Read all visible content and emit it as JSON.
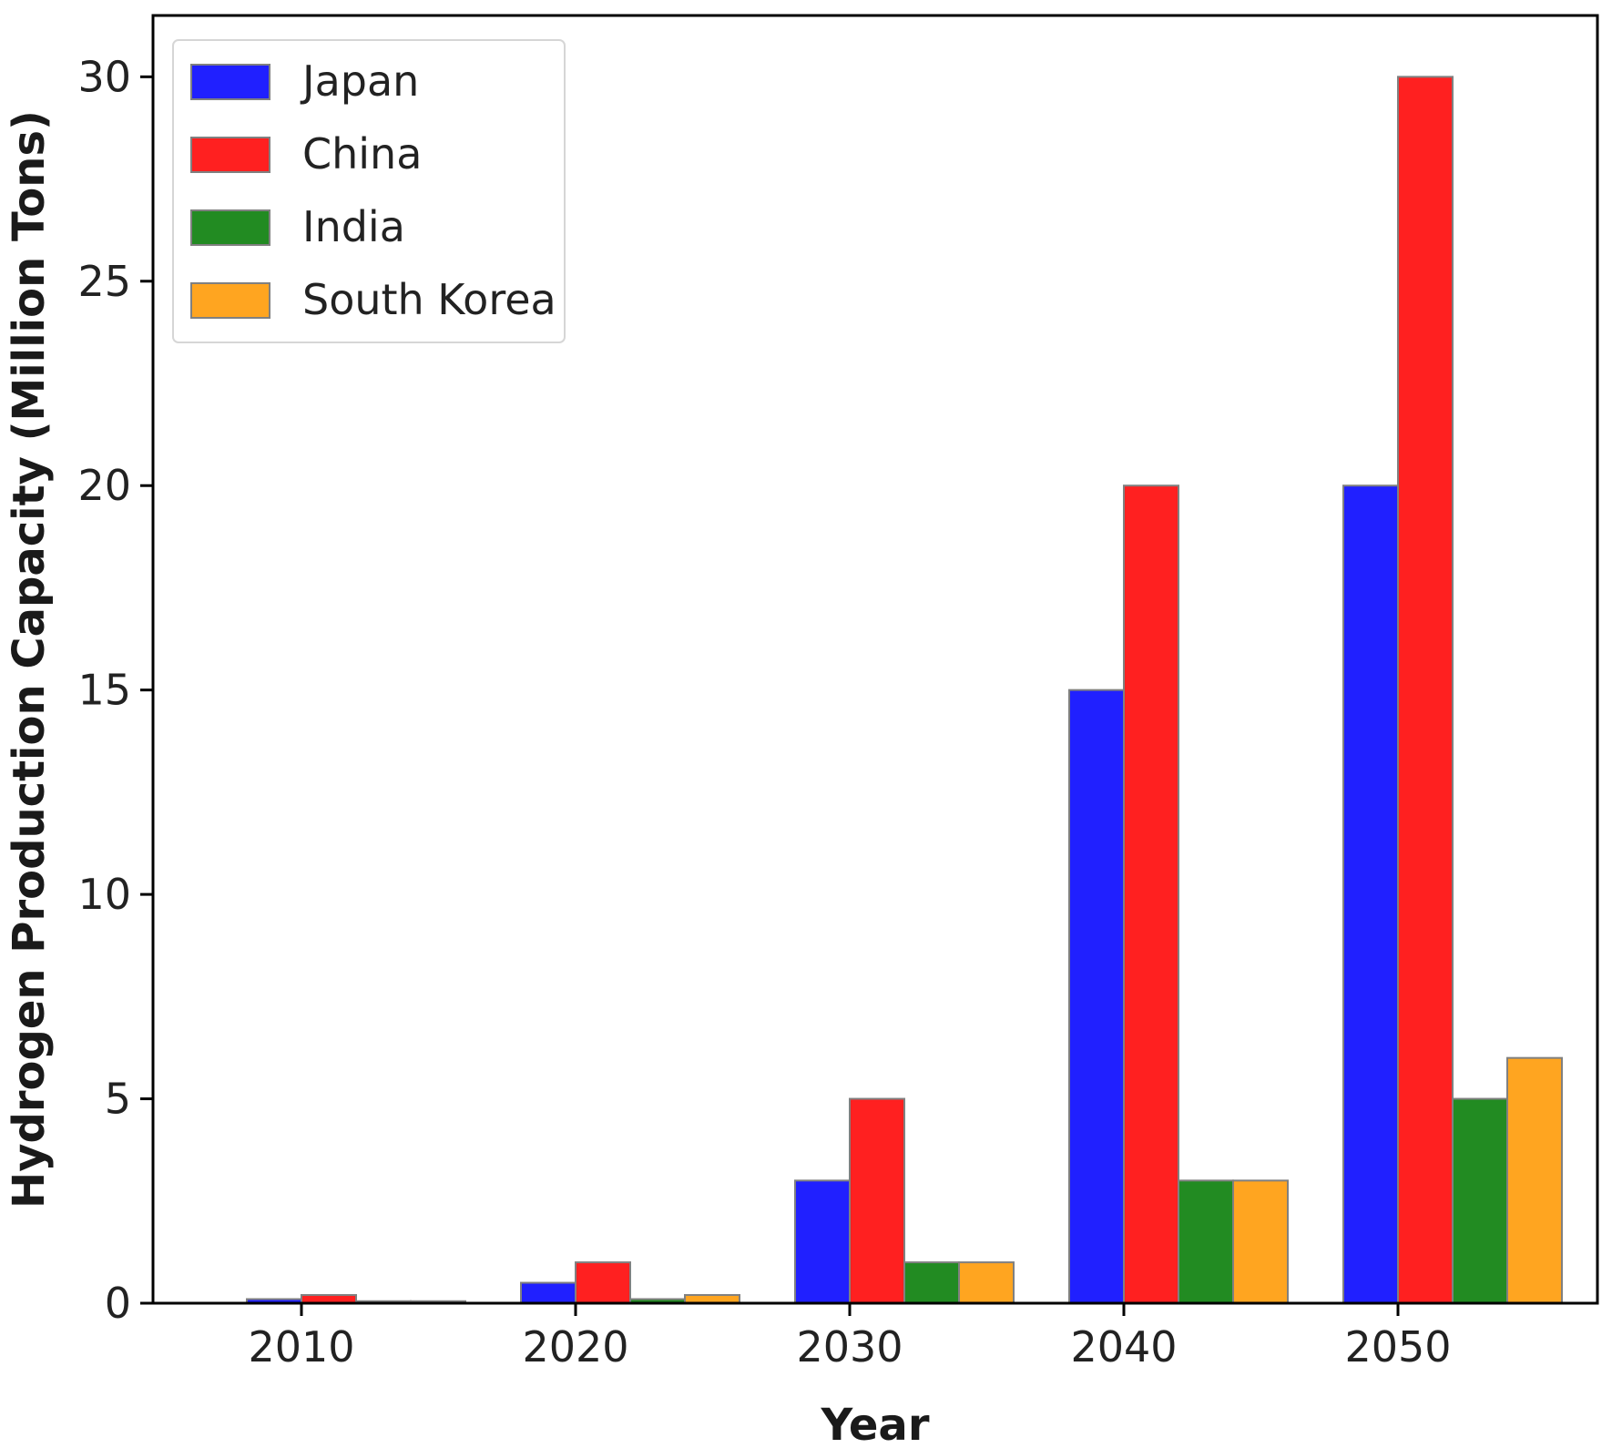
{
  "chart_data": {
    "type": "bar",
    "title": "",
    "xlabel": "Year",
    "ylabel": "Hydrogen Production Capacity (Million Tons)",
    "categories": [
      "2010",
      "2020",
      "2030",
      "2040",
      "2050"
    ],
    "series": [
      {
        "name": "Japan",
        "color": "#2020ff",
        "values": [
          0.1,
          0.5,
          3,
          15,
          20
        ]
      },
      {
        "name": "China",
        "color": "#ff2020",
        "values": [
          0.2,
          1,
          5,
          20,
          30
        ]
      },
      {
        "name": "India",
        "color": "#228B22",
        "values": [
          0.05,
          0.1,
          1,
          3,
          5
        ]
      },
      {
        "name": "South Korea",
        "color": "#FFA520",
        "values": [
          0.05,
          0.2,
          1,
          3,
          6
        ]
      }
    ],
    "yticks": [
      0,
      5,
      10,
      15,
      20,
      25,
      30
    ],
    "ylim": [
      0,
      31.5
    ],
    "grid": false,
    "legend_position": "top-left",
    "bar_edge_color": "#808080"
  }
}
